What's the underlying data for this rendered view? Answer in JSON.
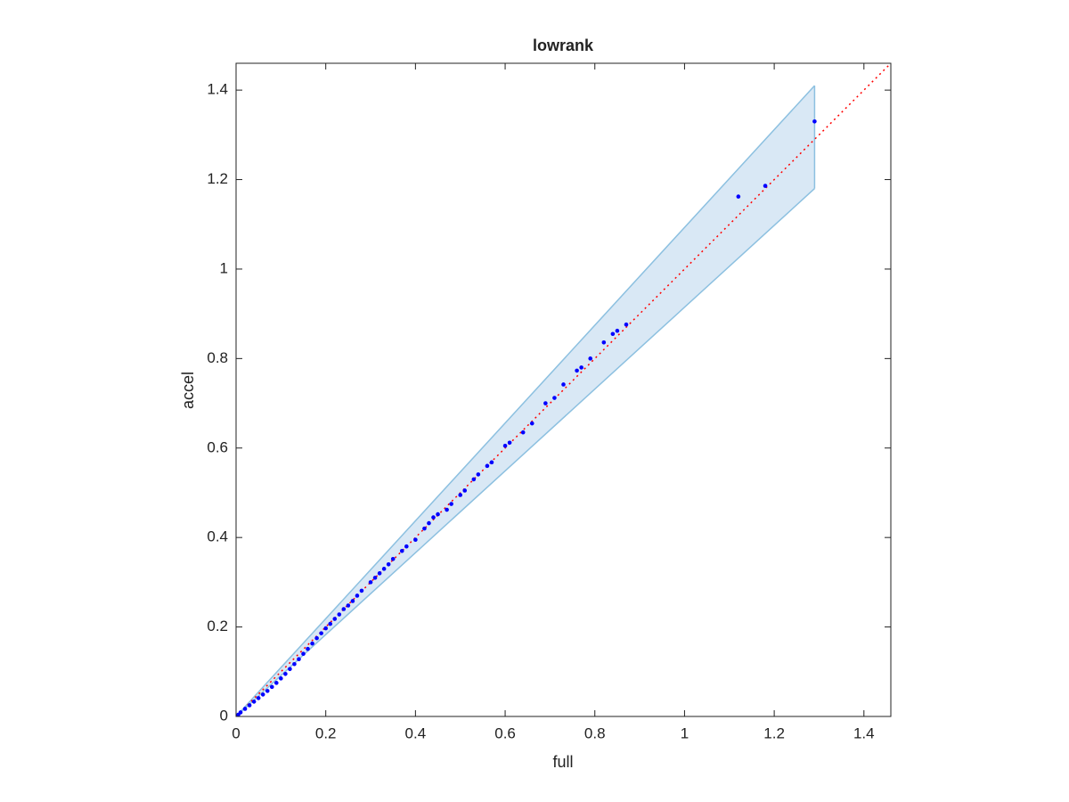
{
  "chart_data": {
    "type": "scatter",
    "title": "lowrank",
    "x_label": "full",
    "y_label": "accel",
    "xlim": [
      0,
      1.46
    ],
    "ylim": [
      0,
      1.46
    ],
    "xticks": [
      0,
      0.2,
      0.4,
      0.6,
      0.8,
      1,
      1.2,
      1.4
    ],
    "yticks": [
      0,
      0.2,
      0.4,
      0.6,
      0.8,
      1,
      1.2,
      1.4
    ],
    "points": {
      "color": "#0000ff",
      "x": [
        0.005,
        0.01,
        0.02,
        0.03,
        0.04,
        0.05,
        0.06,
        0.07,
        0.08,
        0.09,
        0.1,
        0.11,
        0.12,
        0.13,
        0.14,
        0.15,
        0.16,
        0.17,
        0.18,
        0.19,
        0.2,
        0.21,
        0.22,
        0.23,
        0.24,
        0.25,
        0.26,
        0.27,
        0.28,
        0.3,
        0.31,
        0.32,
        0.33,
        0.34,
        0.35,
        0.37,
        0.38,
        0.4,
        0.42,
        0.43,
        0.44,
        0.45,
        0.47,
        0.48,
        0.5,
        0.51,
        0.53,
        0.54,
        0.56,
        0.57,
        0.6,
        0.61,
        0.64,
        0.66,
        0.69,
        0.71,
        0.73,
        0.76,
        0.77,
        0.79,
        0.82,
        0.84,
        0.85,
        0.87,
        1.12,
        1.18,
        1.29
      ],
      "y": [
        0.004,
        0.009,
        0.017,
        0.025,
        0.033,
        0.041,
        0.049,
        0.057,
        0.066,
        0.075,
        0.085,
        0.095,
        0.106,
        0.117,
        0.128,
        0.14,
        0.151,
        0.163,
        0.175,
        0.186,
        0.197,
        0.207,
        0.218,
        0.228,
        0.24,
        0.248,
        0.258,
        0.27,
        0.281,
        0.3,
        0.31,
        0.32,
        0.33,
        0.34,
        0.352,
        0.37,
        0.38,
        0.395,
        0.42,
        0.432,
        0.445,
        0.452,
        0.462,
        0.475,
        0.495,
        0.505,
        0.53,
        0.541,
        0.56,
        0.568,
        0.605,
        0.612,
        0.635,
        0.655,
        0.7,
        0.712,
        0.742,
        0.773,
        0.78,
        0.8,
        0.836,
        0.855,
        0.862,
        0.876,
        1.162,
        1.186,
        1.33
      ]
    },
    "band": {
      "color": "#d9e8f5",
      "edge_color": "#8cc0e0",
      "x": [
        0,
        1.29
      ],
      "lower": [
        0,
        1.18
      ],
      "upper": [
        0,
        1.41
      ]
    },
    "reference_line": {
      "color": "#ff0000",
      "x": [
        0,
        1.46
      ],
      "y": [
        0,
        1.46
      ]
    }
  }
}
